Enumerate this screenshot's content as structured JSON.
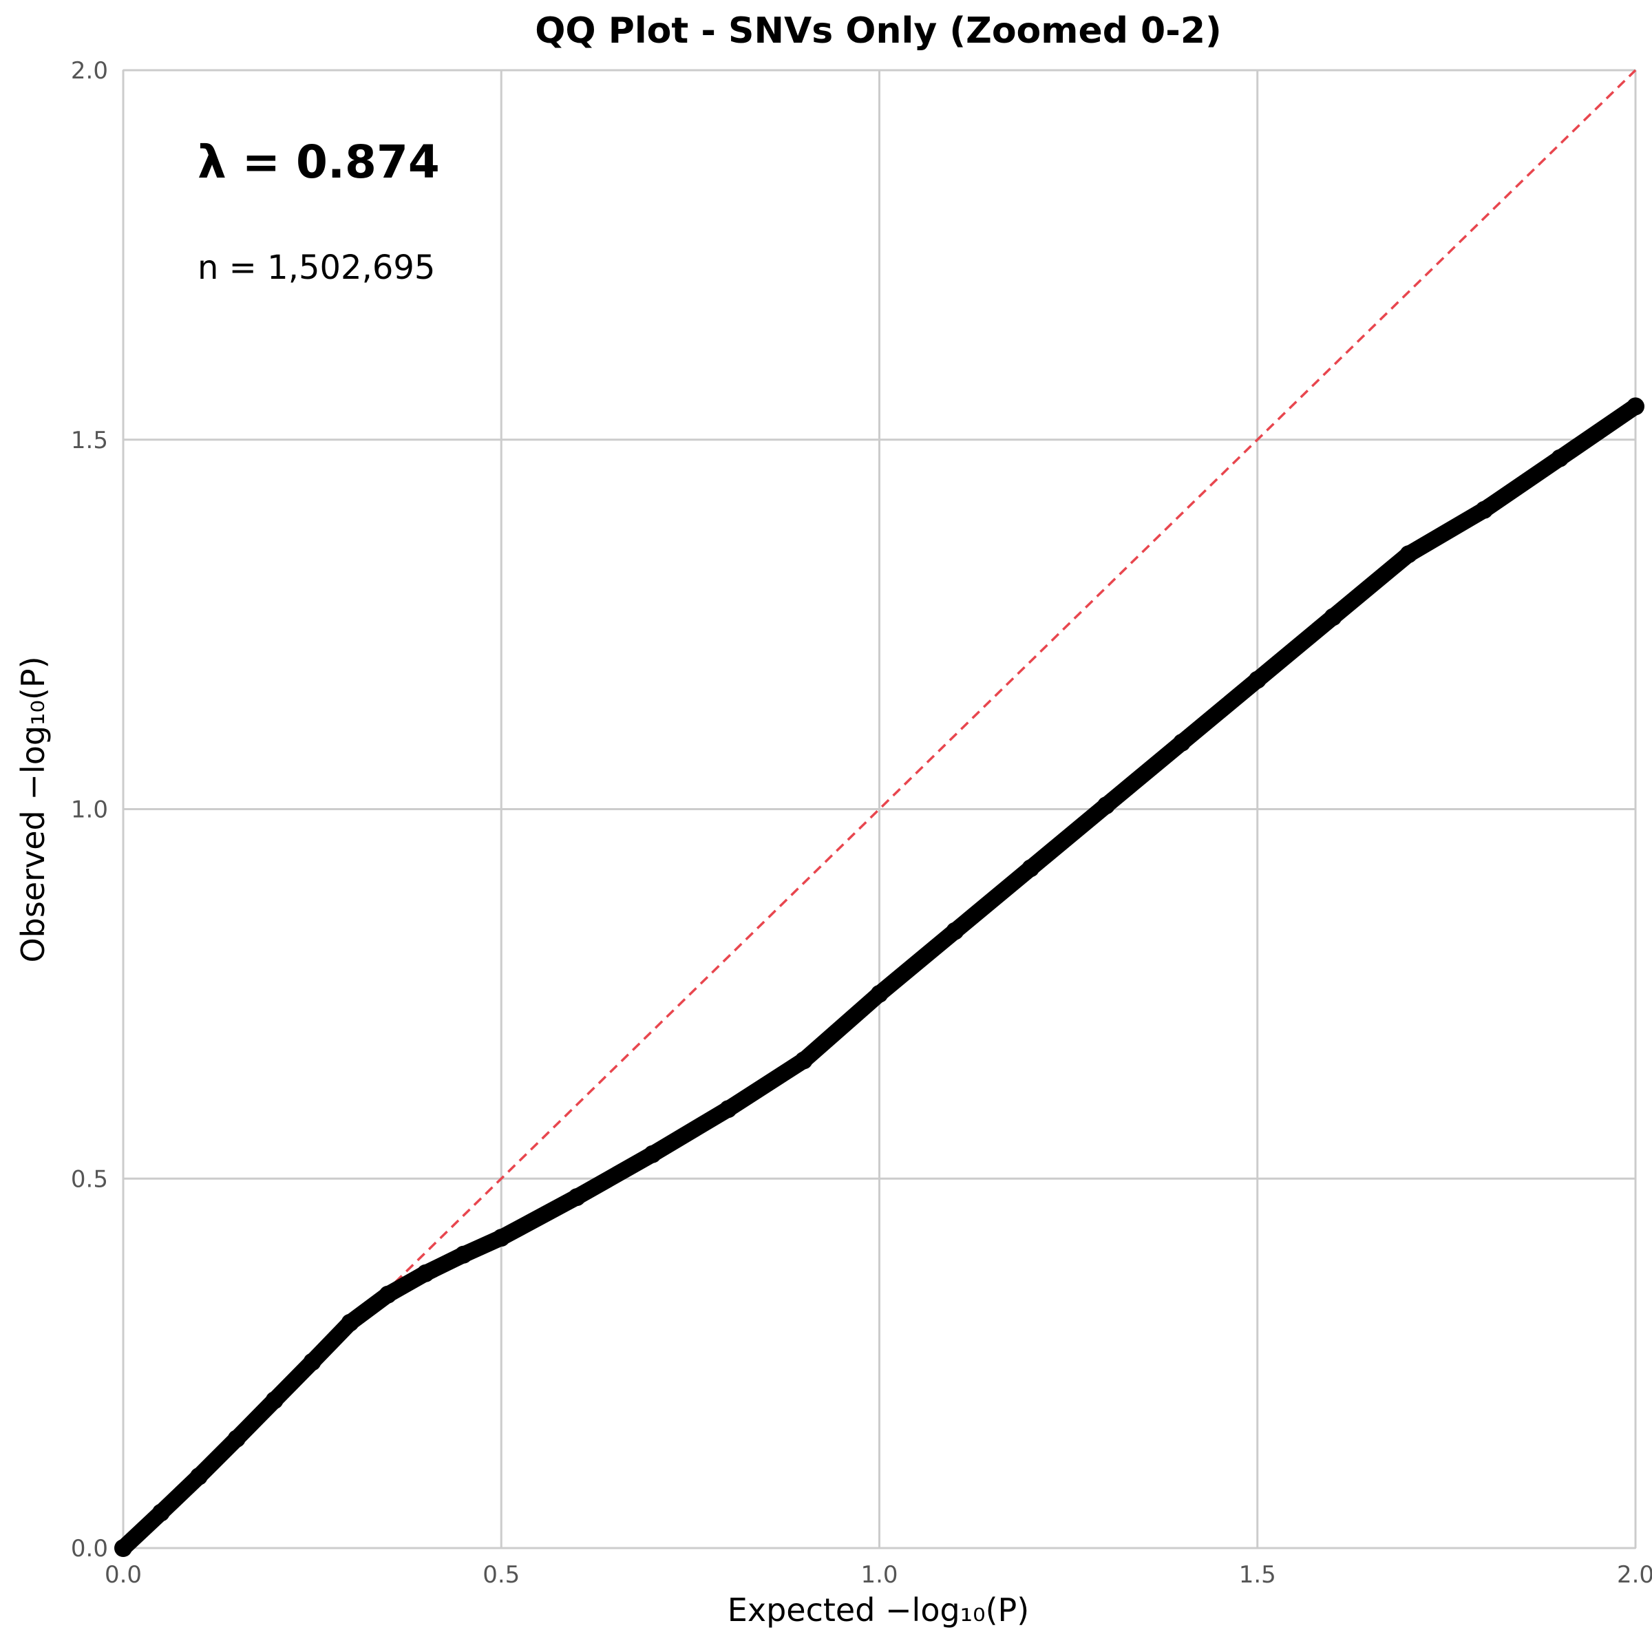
{
  "chart_data": {
    "type": "scatter",
    "title": "QQ Plot - SNVs Only (Zoomed 0-2)",
    "xlabel": "Expected −log₁₀(P)",
    "ylabel": "Observed −log₁₀(P)",
    "xlim": [
      0,
      2
    ],
    "ylim": [
      0,
      2
    ],
    "x_ticks": [
      "0.0",
      "0.5",
      "1.0",
      "1.5",
      "2.0"
    ],
    "y_ticks": [
      "0.0",
      "0.5",
      "1.0",
      "1.5",
      "2.0"
    ],
    "grid": true,
    "annotations": {
      "lambda": "λ = 0.874",
      "n": "n = 1,502,695"
    },
    "series": [
      {
        "marker_color": "#000000",
        "x": [
          0.0,
          0.05,
          0.1,
          0.15,
          0.2,
          0.25,
          0.3,
          0.35,
          0.4,
          0.45,
          0.5,
          0.6,
          0.7,
          0.8,
          0.9,
          1.0,
          1.1,
          1.2,
          1.3,
          1.4,
          1.5,
          1.6,
          1.7,
          1.8,
          1.9,
          2.0
        ],
        "y": [
          0.0,
          0.048,
          0.097,
          0.148,
          0.2,
          0.252,
          0.305,
          0.343,
          0.372,
          0.397,
          0.42,
          0.475,
          0.533,
          0.594,
          0.66,
          0.75,
          0.835,
          0.92,
          1.005,
          1.09,
          1.175,
          1.26,
          1.345,
          1.405,
          1.475,
          1.545
        ]
      },
      {
        "line_color": "#e8464e",
        "line_style": "dashed",
        "x": [
          0,
          2
        ],
        "y": [
          0,
          2
        ]
      }
    ]
  }
}
